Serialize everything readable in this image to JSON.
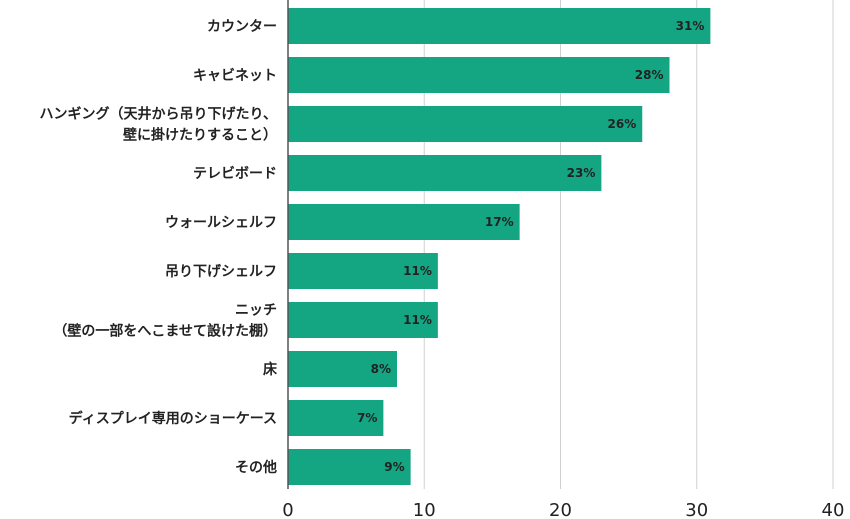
{
  "chart_data": {
    "type": "bar",
    "orientation": "horizontal",
    "categories": [
      [
        "カウンター"
      ],
      [
        "キャビネット"
      ],
      [
        "ハンギング（天井から吊り下げたり、",
        "壁に掛けたりすること）"
      ],
      [
        "テレビボード"
      ],
      [
        "ウォールシェルフ"
      ],
      [
        "吊り下げシェルフ"
      ],
      [
        "ニッチ",
        "（壁の一部をへこませて設けた棚）"
      ],
      [
        "床"
      ],
      [
        "ディスプレイ専用のショーケース"
      ],
      [
        "その他"
      ]
    ],
    "values": [
      31,
      28,
      26,
      23,
      17,
      11,
      11,
      8,
      7,
      9
    ],
    "value_labels": [
      "31%",
      "28%",
      "26%",
      "23%",
      "17%",
      "11%",
      "11%",
      "8%",
      "7%",
      "9%"
    ],
    "xlim": [
      0,
      40
    ],
    "x_ticks": [
      0,
      10,
      20,
      30,
      40
    ],
    "x_tick_labels": [
      "0",
      "10",
      "20",
      "30",
      "40"
    ],
    "grid": true,
    "bar_color": "#14a583",
    "grid_color": "#d0d0d0",
    "axis_color": "#555555"
  }
}
